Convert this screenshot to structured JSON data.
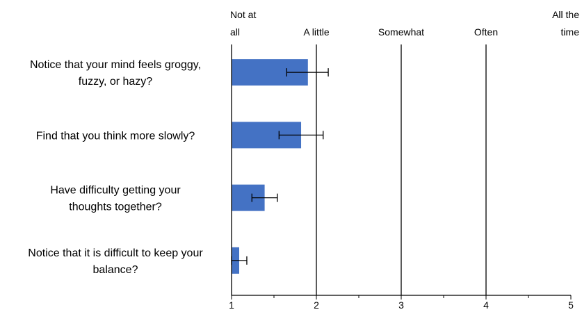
{
  "chart_data": {
    "type": "bar",
    "orientation": "horizontal",
    "categories": [
      [
        "Notice that your mind feels groggy,",
        "fuzzy, or hazy?"
      ],
      [
        "Find that you think more slowly?"
      ],
      [
        "Have difficulty getting your",
        "thoughts together?"
      ],
      [
        "Notice that it is difficult to keep your",
        "balance?"
      ]
    ],
    "values": [
      1.9,
      1.82,
      1.39,
      1.09
    ],
    "error_low": [
      1.65,
      1.56,
      1.24,
      1.0
    ],
    "error_high": [
      2.14,
      2.08,
      1.54,
      1.18
    ],
    "xlim": [
      1,
      5
    ],
    "x_ticks": [
      "1",
      "2",
      "3",
      "4",
      "5"
    ],
    "scale_labels": [
      [
        "Not at",
        "all"
      ],
      [
        "A little"
      ],
      [
        "Somewhat"
      ],
      [
        "Often"
      ],
      [
        "All the",
        "time"
      ]
    ],
    "bar_color": "#4472C4",
    "grid": "vertical at integer values"
  }
}
